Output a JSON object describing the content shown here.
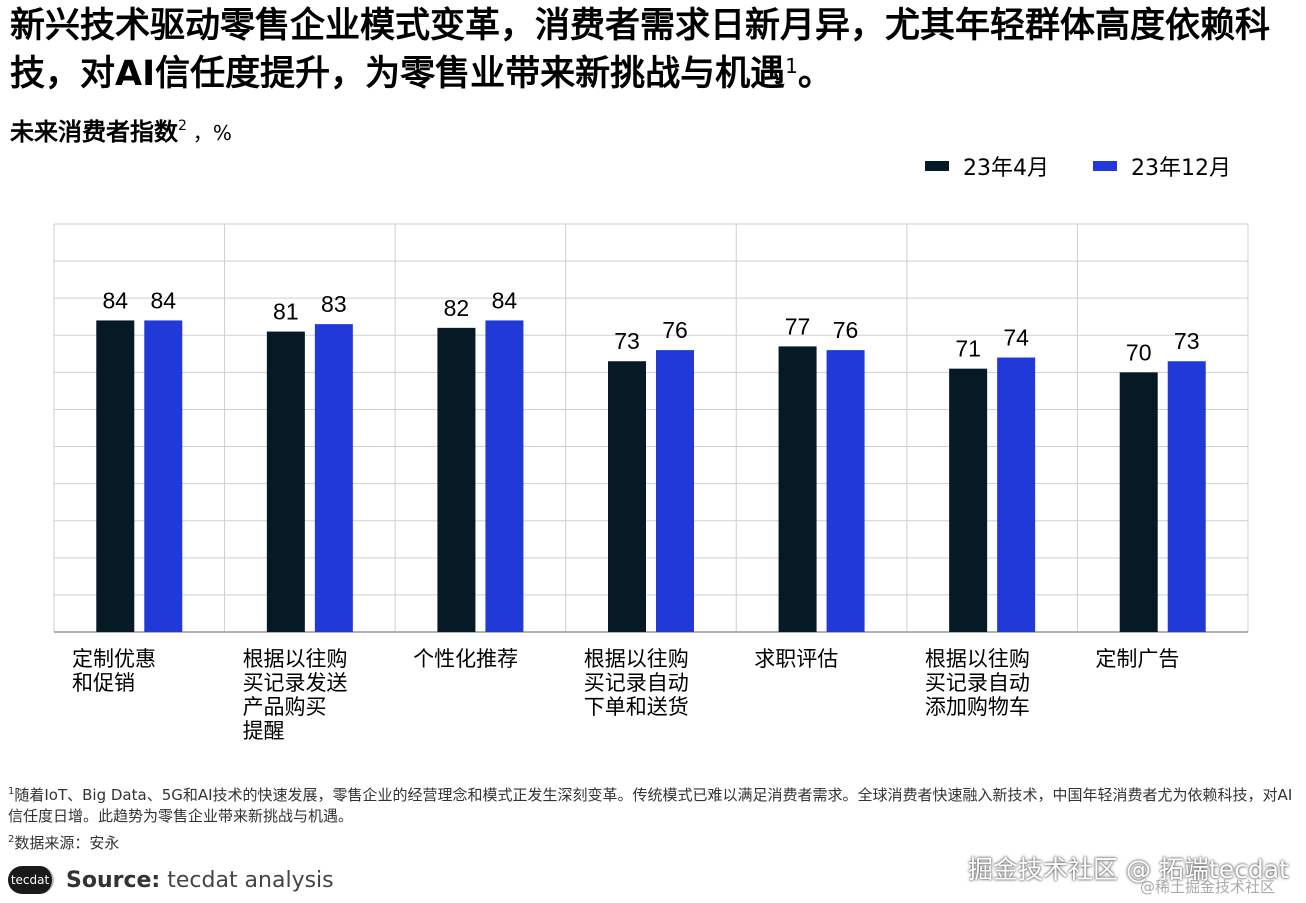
{
  "headline": {
    "text": "新兴技术驱动零售企业模式变革，消费者需求日新月异，尤其年轻群体高度依赖科技，对AI信任度提升，为零售业带来新挑战与机遇",
    "sup": "1",
    "end": "。"
  },
  "subtitle": {
    "text": "未来消费者指数",
    "sup": "2",
    "unit": "，%"
  },
  "chart_data": {
    "type": "bar",
    "title": "未来消费者指数",
    "ylabel": "%",
    "ylim": [
      0,
      110
    ],
    "grid": true,
    "legend_position": "top-right",
    "categories": [
      [
        "定制优惠",
        "和促销"
      ],
      [
        "根据以往购",
        "买记录发送",
        "产品购买",
        "提醒"
      ],
      [
        "个性化推荐"
      ],
      [
        "根据以往购",
        "买记录自动",
        "下单和送货"
      ],
      [
        "求职评估"
      ],
      [
        "根据以往购",
        "买记录自动",
        "添加购物车"
      ],
      [
        "定制广告"
      ]
    ],
    "series": [
      {
        "name": "23年4月",
        "color": "#061a26",
        "values": [
          84,
          81,
          82,
          73,
          77,
          71,
          70
        ]
      },
      {
        "name": "23年12月",
        "color": "#2139d8",
        "values": [
          84,
          83,
          84,
          76,
          76,
          74,
          73
        ]
      }
    ]
  },
  "footnotes": [
    {
      "sup": "1",
      "text": "随着IoT、Big Data、5G和AI技术的快速发展，零售企业的经营理念和模式正发生深刻变革。传统模式已难以满足消费者需求。全球消费者快速融入新技术，中国年轻消费者尤为依赖科技，对AI信任度日增。此趋势为零售企业带来新挑战与机遇。"
    },
    {
      "sup": "2",
      "text": "数据来源：安永"
    }
  ],
  "source": {
    "logo": "tecdat",
    "label": "Source:",
    "text": "tecdat analysis"
  },
  "watermark": {
    "primary": "掘金技术社区 @ 拓端tecdat",
    "secondary": "@稀土掘金技术社区"
  }
}
